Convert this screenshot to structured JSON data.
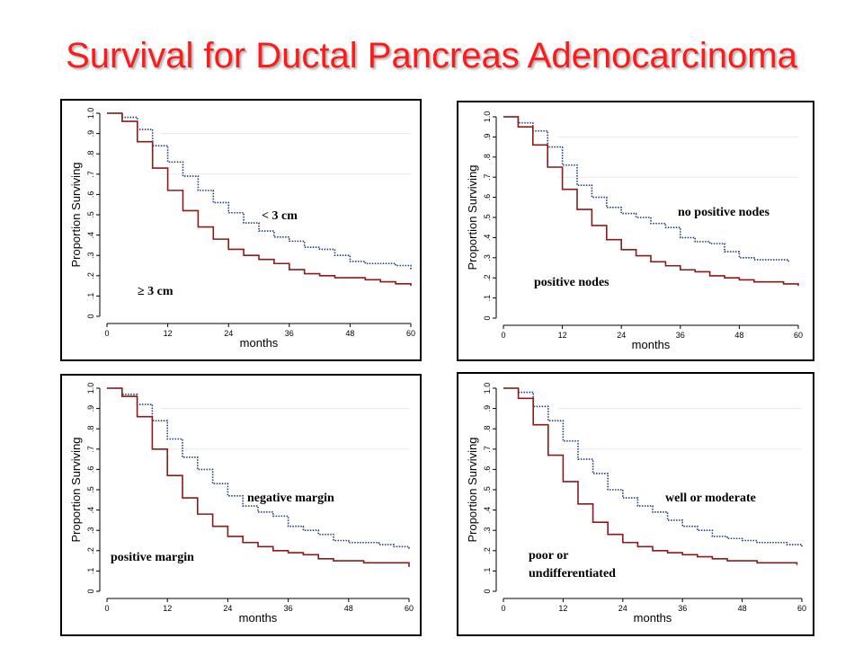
{
  "title": "Survival for Ductal Pancreas Adenocarcinoma",
  "colors": {
    "title": "#ff1a1a",
    "upper_curve": "#1f3d7a",
    "lower_curve": "#8b1a1a"
  },
  "chart_data": [
    {
      "type": "line",
      "ylabel": "Proportion Surviving",
      "xlabel": "months",
      "xticks": [
        "0",
        "12",
        "24",
        "36",
        "48",
        "60"
      ],
      "yticks": [
        "0",
        ".1",
        ".2",
        ".3",
        ".4",
        ".5",
        ".6",
        ".7",
        ".8",
        ".9",
        "1.0"
      ],
      "xlim": [
        0,
        60
      ],
      "ylim": [
        0,
        1
      ],
      "annotations": [
        "< 3 cm",
        "≥ 3 cm"
      ],
      "series": [
        {
          "name": "< 3 cm",
          "style": "dotted",
          "x": [
            0,
            3,
            6,
            9,
            12,
            15,
            18,
            21,
            24,
            27,
            30,
            33,
            36,
            39,
            42,
            45,
            48,
            51,
            54,
            57,
            60
          ],
          "y": [
            1.0,
            0.98,
            0.92,
            0.84,
            0.76,
            0.69,
            0.62,
            0.56,
            0.51,
            0.46,
            0.42,
            0.39,
            0.37,
            0.34,
            0.33,
            0.3,
            0.27,
            0.26,
            0.26,
            0.25,
            0.23
          ]
        },
        {
          "name": "≥ 3 cm",
          "style": "solid",
          "x": [
            0,
            3,
            6,
            9,
            12,
            15,
            18,
            21,
            24,
            27,
            30,
            33,
            36,
            39,
            42,
            45,
            48,
            51,
            54,
            57,
            60
          ],
          "y": [
            1.0,
            0.96,
            0.86,
            0.73,
            0.62,
            0.52,
            0.44,
            0.38,
            0.33,
            0.3,
            0.28,
            0.26,
            0.23,
            0.21,
            0.2,
            0.19,
            0.19,
            0.18,
            0.17,
            0.16,
            0.15
          ]
        }
      ]
    },
    {
      "type": "line",
      "ylabel": "Proportion Surviving",
      "xlabel": "months",
      "xticks": [
        "0",
        "12",
        "24",
        "36",
        "48",
        "60"
      ],
      "yticks": [
        "0",
        ".1",
        ".2",
        ".3",
        ".4",
        ".5",
        ".6",
        ".7",
        ".8",
        ".9",
        "1.0"
      ],
      "xlim": [
        0,
        60
      ],
      "ylim": [
        0,
        1
      ],
      "annotations": [
        "no positive nodes",
        "positive nodes"
      ],
      "series": [
        {
          "name": "no positive nodes",
          "style": "dotted",
          "x": [
            0,
            3,
            6,
            9,
            12,
            15,
            18,
            21,
            24,
            27,
            30,
            33,
            36,
            39,
            42,
            45,
            48,
            51,
            54,
            57,
            58
          ],
          "y": [
            1.0,
            0.97,
            0.93,
            0.85,
            0.76,
            0.66,
            0.6,
            0.55,
            0.52,
            0.5,
            0.47,
            0.45,
            0.4,
            0.38,
            0.37,
            0.33,
            0.3,
            0.29,
            0.29,
            0.29,
            0.28
          ]
        },
        {
          "name": "positive nodes",
          "style": "solid",
          "x": [
            0,
            3,
            6,
            9,
            12,
            15,
            18,
            21,
            24,
            27,
            30,
            33,
            36,
            39,
            42,
            45,
            48,
            51,
            54,
            57,
            60
          ],
          "y": [
            1.0,
            0.95,
            0.86,
            0.75,
            0.64,
            0.54,
            0.46,
            0.39,
            0.34,
            0.31,
            0.28,
            0.26,
            0.24,
            0.23,
            0.21,
            0.2,
            0.19,
            0.18,
            0.18,
            0.17,
            0.16
          ]
        }
      ]
    },
    {
      "type": "line",
      "ylabel": "Proportion Surviving",
      "xlabel": "months",
      "xticks": [
        "0",
        "12",
        "24",
        "36",
        "48",
        "60"
      ],
      "yticks": [
        "0",
        ".1",
        ".2",
        ".3",
        ".4",
        ".5",
        ".6",
        ".7",
        ".8",
        ".9",
        "1.0"
      ],
      "xlim": [
        0,
        60
      ],
      "ylim": [
        0,
        1
      ],
      "annotations": [
        "negative margin",
        "positive margin"
      ],
      "series": [
        {
          "name": "negative margin",
          "style": "dotted",
          "x": [
            0,
            3,
            6,
            9,
            12,
            15,
            18,
            21,
            24,
            27,
            30,
            33,
            36,
            39,
            42,
            45,
            48,
            51,
            54,
            57,
            60
          ],
          "y": [
            1.0,
            0.97,
            0.92,
            0.84,
            0.75,
            0.66,
            0.6,
            0.53,
            0.47,
            0.42,
            0.39,
            0.37,
            0.32,
            0.3,
            0.28,
            0.25,
            0.24,
            0.24,
            0.23,
            0.22,
            0.21
          ]
        },
        {
          "name": "positive margin",
          "style": "solid",
          "x": [
            0,
            3,
            6,
            9,
            12,
            15,
            18,
            21,
            24,
            27,
            30,
            33,
            36,
            39,
            42,
            45,
            48,
            51,
            54,
            57,
            60
          ],
          "y": [
            1.0,
            0.96,
            0.86,
            0.7,
            0.57,
            0.46,
            0.38,
            0.32,
            0.27,
            0.24,
            0.22,
            0.2,
            0.19,
            0.18,
            0.16,
            0.15,
            0.15,
            0.14,
            0.14,
            0.14,
            0.12
          ]
        }
      ]
    },
    {
      "type": "line",
      "ylabel": "Proportion Surviving",
      "xlabel": "months",
      "xticks": [
        "0",
        "12",
        "24",
        "36",
        "48",
        "60"
      ],
      "yticks": [
        "0",
        ".1",
        ".2",
        ".3",
        ".4",
        ".5",
        ".6",
        ".7",
        ".8",
        ".9",
        "1.0"
      ],
      "xlim": [
        0,
        60
      ],
      "ylim": [
        0,
        1
      ],
      "annotations": [
        "well or moderate",
        "poor or undifferentiated"
      ],
      "series": [
        {
          "name": "well or moderate",
          "style": "dotted",
          "x": [
            0,
            3,
            6,
            9,
            12,
            15,
            18,
            21,
            24,
            27,
            30,
            33,
            36,
            39,
            42,
            45,
            48,
            51,
            54,
            57,
            60
          ],
          "y": [
            1.0,
            0.98,
            0.91,
            0.84,
            0.74,
            0.65,
            0.58,
            0.5,
            0.46,
            0.42,
            0.39,
            0.35,
            0.32,
            0.3,
            0.27,
            0.26,
            0.25,
            0.24,
            0.24,
            0.23,
            0.22
          ]
        },
        {
          "name": "poor or undifferentiated",
          "style": "solid",
          "x": [
            0,
            3,
            6,
            9,
            12,
            15,
            18,
            21,
            24,
            27,
            30,
            33,
            36,
            39,
            42,
            45,
            48,
            51,
            54,
            57,
            59
          ],
          "y": [
            1.0,
            0.95,
            0.82,
            0.67,
            0.54,
            0.43,
            0.34,
            0.28,
            0.24,
            0.22,
            0.2,
            0.19,
            0.18,
            0.17,
            0.16,
            0.15,
            0.15,
            0.14,
            0.14,
            0.14,
            0.13
          ]
        }
      ]
    }
  ]
}
